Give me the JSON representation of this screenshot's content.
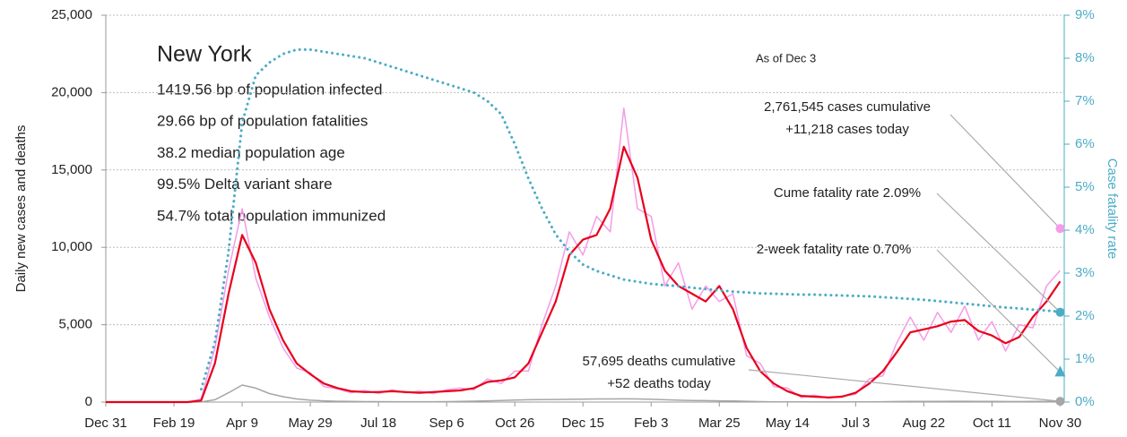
{
  "chart_data": {
    "type": "line",
    "info_title": "New York",
    "info_lines": [
      "1419.56 bp of population infected",
      "29.66 bp of population fatalities",
      "38.2 median population age",
      "99.5% Delta variant share",
      "54.7% total population immunized"
    ],
    "as_of": "As of Dec 3",
    "ylabel": "Daily new cases and deaths",
    "y2label": "Case fatality rate",
    "grid": true,
    "xlim": [
      0,
      703
    ],
    "xticks": [
      {
        "value": 0,
        "label": "Dec 31"
      },
      {
        "value": 50,
        "label": "Feb 19"
      },
      {
        "value": 100,
        "label": "Apr 9"
      },
      {
        "value": 150,
        "label": "May 29"
      },
      {
        "value": 200,
        "label": "Jul 18"
      },
      {
        "value": 250,
        "label": "Sep 6"
      },
      {
        "value": 300,
        "label": "Oct 26"
      },
      {
        "value": 350,
        "label": "Dec 15"
      },
      {
        "value": 400,
        "label": "Feb 3"
      },
      {
        "value": 450,
        "label": "Mar 25"
      },
      {
        "value": 500,
        "label": "May 14"
      },
      {
        "value": 550,
        "label": "Jul 3"
      },
      {
        "value": 600,
        "label": "Aug 22"
      },
      {
        "value": 650,
        "label": "Oct 11"
      },
      {
        "value": 700,
        "label": "Nov 30"
      }
    ],
    "ylim": [
      0,
      25000
    ],
    "yticks": [
      0,
      {
        "value": 5000,
        "label": "5,000"
      },
      {
        "value": 10000,
        "label": "10,000"
      },
      {
        "value": 15000,
        "label": "15,000"
      },
      {
        "value": 20000,
        "label": "20,000"
      },
      {
        "value": 25000,
        "label": "25,000"
      }
    ],
    "y2lim": [
      0,
      9
    ],
    "y2ticks": [
      {
        "value": 0,
        "label": "0%"
      },
      {
        "value": 1,
        "label": "1%"
      },
      {
        "value": 2,
        "label": "2%"
      },
      {
        "value": 3,
        "label": "3%"
      },
      {
        "value": 4,
        "label": "4%"
      },
      {
        "value": 5,
        "label": "5%"
      },
      {
        "value": 6,
        "label": "6%"
      },
      {
        "value": 7,
        "label": "7%"
      },
      {
        "value": 8,
        "label": "8%"
      },
      {
        "value": 9,
        "label": "9%"
      }
    ],
    "x": [
      0,
      10,
      20,
      30,
      40,
      50,
      60,
      70,
      80,
      90,
      100,
      110,
      120,
      130,
      140,
      150,
      160,
      170,
      180,
      190,
      200,
      210,
      220,
      230,
      240,
      250,
      260,
      270,
      280,
      290,
      300,
      310,
      320,
      330,
      340,
      350,
      360,
      370,
      380,
      390,
      400,
      410,
      420,
      430,
      440,
      450,
      460,
      470,
      480,
      490,
      500,
      510,
      520,
      530,
      540,
      550,
      560,
      570,
      580,
      590,
      600,
      610,
      620,
      630,
      640,
      650,
      660,
      670,
      680,
      690,
      700
    ],
    "series": [
      {
        "color": "#f59be8",
        "width": 1.5,
        "values": [
          0,
          0,
          0,
          0,
          0,
          0,
          0,
          200,
          3500,
          8500,
          12500,
          8000,
          5500,
          3500,
          2200,
          1900,
          1000,
          850,
          600,
          750,
          550,
          800,
          600,
          700,
          550,
          800,
          900,
          800,
          1500,
          1200,
          2000,
          2000,
          5000,
          7500,
          11000,
          9500,
          12000,
          11000,
          19000,
          12500,
          12000,
          7500,
          9000,
          6000,
          7500,
          6500,
          7000,
          3000,
          2500,
          1000,
          900,
          300,
          450,
          250,
          400,
          500,
          1500,
          1700,
          3800,
          5500,
          4000,
          5800,
          4500,
          6200,
          4000,
          5200,
          3300,
          5000,
          4800,
          7500,
          8500
        ]
      },
      {
        "color": "#a6a6a6",
        "width": 1.5,
        "values": [
          0,
          0,
          0,
          0,
          0,
          0,
          0,
          5,
          150,
          600,
          1100,
          900,
          550,
          350,
          200,
          120,
          80,
          50,
          40,
          30,
          30,
          25,
          25,
          25,
          25,
          30,
          40,
          60,
          80,
          100,
          130,
          150,
          160,
          170,
          180,
          190,
          200,
          200,
          210,
          200,
          180,
          150,
          120,
          100,
          90,
          80,
          70,
          50,
          30,
          20,
          15,
          10,
          8,
          8,
          8,
          10,
          15,
          25,
          35,
          40,
          45,
          45,
          50,
          50,
          45,
          40,
          35,
          35,
          40,
          45,
          50
        ]
      },
      {
        "color": "#e8001c",
        "width": 2.2,
        "values": [
          0,
          0,
          0,
          0,
          0,
          0,
          0,
          100,
          2500,
          7000,
          10800,
          9000,
          6000,
          4000,
          2500,
          1800,
          1200,
          900,
          700,
          650,
          650,
          700,
          650,
          600,
          650,
          700,
          750,
          900,
          1300,
          1400,
          1600,
          2500,
          4500,
          6500,
          9500,
          10500,
          10800,
          12500,
          16500,
          14500,
          10500,
          8500,
          7500,
          7000,
          6500,
          7500,
          6000,
          3500,
          2000,
          1200,
          700,
          400,
          350,
          300,
          350,
          600,
          1200,
          2000,
          3200,
          4500,
          4700,
          4900,
          5200,
          5300,
          4600,
          4300,
          3800,
          4200,
          5500,
          6500,
          7800
        ]
      },
      {
        "color": "#4bacc6",
        "width": 3,
        "style": "dotted",
        "axis": "y2",
        "values": [
          null,
          null,
          null,
          null,
          null,
          null,
          null,
          0.3,
          1.4,
          3.5,
          6.5,
          7.6,
          7.9,
          8.1,
          8.2,
          8.2,
          8.15,
          8.1,
          8.05,
          8.0,
          7.9,
          7.8,
          7.7,
          7.6,
          7.5,
          7.4,
          7.3,
          7.2,
          7.0,
          6.7,
          6.0,
          5.2,
          4.5,
          3.9,
          3.5,
          3.2,
          3.05,
          2.95,
          2.85,
          2.8,
          2.75,
          2.72,
          2.7,
          2.66,
          2.63,
          2.6,
          2.57,
          2.55,
          2.53,
          2.52,
          2.51,
          2.5,
          2.5,
          2.49,
          2.48,
          2.47,
          2.46,
          2.44,
          2.42,
          2.4,
          2.38,
          2.35,
          2.32,
          2.29,
          2.26,
          2.23,
          2.2,
          2.18,
          2.15,
          2.13,
          2.1
        ]
      }
    ],
    "annotations": [
      {
        "lines": [
          "2,761,545 cases cumulative",
          "+11,218 cases today"
        ],
        "value": 11218,
        "marker": "circle",
        "color": "#f59be8"
      },
      {
        "lines": [
          "Cume fatality rate 2.09%"
        ],
        "value": 2.09,
        "axis": "y2",
        "marker": "circle",
        "color": "#4bacc6"
      },
      {
        "lines": [
          "2-week fatality rate 0.70%"
        ],
        "value": 0.7,
        "axis": "y2",
        "marker": "triangle",
        "color": "#4bacc6"
      },
      {
        "lines": [
          "57,695 deaths cumulative",
          "+52 deaths today"
        ],
        "value": 52,
        "marker": "circle",
        "color": "#a6a6a6"
      }
    ]
  }
}
